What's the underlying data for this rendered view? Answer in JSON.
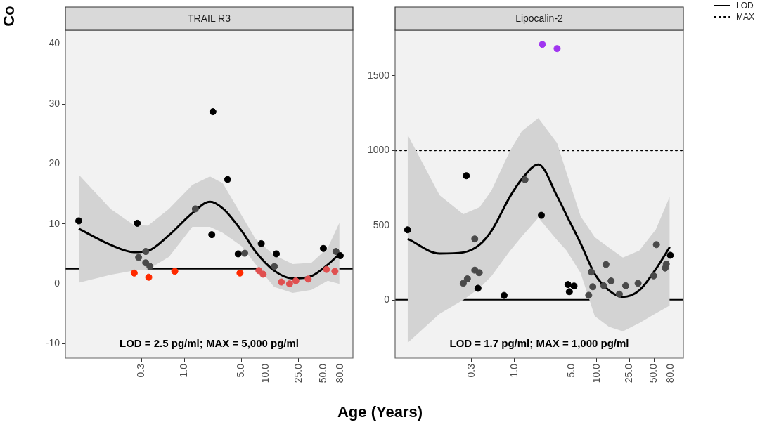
{
  "chart_data": [
    {
      "type": "scatter",
      "title": "TRAIL R3",
      "xlabel": "Age (Years)",
      "ylabel": "Co",
      "log": "x",
      "grid": false,
      "legend": false,
      "marker": "circle",
      "xlim": [
        0.035,
        115
      ],
      "xticks": [
        {
          "value": 0.3,
          "label": "0.3"
        },
        {
          "value": 1,
          "label": "1.0"
        },
        {
          "value": 5,
          "label": "5.0"
        },
        {
          "value": 10,
          "label": "10.0"
        },
        {
          "value": 25,
          "label": "25.0"
        },
        {
          "value": 50,
          "label": "50.0"
        },
        {
          "value": 80,
          "label": "80.0"
        }
      ],
      "ylim": [
        -12.4,
        42.3
      ],
      "yticks": [
        -10,
        0,
        10,
        20,
        30,
        40
      ],
      "series": [
        {
          "color": "#000000",
          "x": [
            0.051,
            0.265,
            2.23,
            3.37,
            2.16,
            4.54,
            8.7,
            13.3,
            50,
            80.4
          ],
          "values": [
            10.5,
            10.1,
            28.7,
            17.4,
            8.2,
            5.0,
            6.7,
            5.0,
            5.9,
            4.7
          ]
        },
        {
          "color": "#4a4a4a",
          "x": [
            0.275,
            0.336,
            0.336,
            0.378,
            1.36,
            5.46,
            12.6,
            71.3
          ],
          "values": [
            4.4,
            5.4,
            3.5,
            2.9,
            12.5,
            5.1,
            2.9,
            5.4
          ]
        },
        {
          "color": "#ff2a00",
          "x": [
            0.243,
            0.366,
            0.762,
            4.78
          ],
          "values": [
            1.8,
            1.1,
            2.1,
            1.8
          ]
        },
        {
          "color": "#e05050",
          "x": [
            8.15,
            9.17,
            15.3,
            19.3,
            23.0,
            32.6,
            54.6,
            69.2
          ],
          "values": [
            2.2,
            1.6,
            0.3,
            0.0,
            0.5,
            0.8,
            2.4,
            2.1
          ]
        },
        {
          "type": "line",
          "color": "#000000",
          "line_style": "solid",
          "marker": "none",
          "x": [
            0.051,
            0.125,
            0.241,
            0.358,
            0.647,
            1.25,
            2.05,
            2.94,
            4.97,
            7.38,
            12.5,
            21.1,
            35.7,
            56.6,
            78.7
          ],
          "values": [
            9.2,
            6.5,
            5.3,
            5.5,
            8.1,
            11.8,
            13.7,
            12.6,
            8.9,
            5.4,
            2.2,
            0.9,
            1.3,
            3.2,
            5.0
          ],
          "upper": [
            18.2,
            12.5,
            9.8,
            9.7,
            12.5,
            16.5,
            17.9,
            16.8,
            11.5,
            7.5,
            4.8,
            3.3,
            3.5,
            6.0,
            10.2
          ],
          "lower": [
            0.2,
            1.5,
            2.2,
            2.4,
            4.5,
            9.5,
            9.5,
            8.5,
            6.3,
            3.3,
            -0.5,
            -1.5,
            -1.0,
            0.5,
            0.0
          ]
        }
      ],
      "ref_lines": [
        {
          "axis": "y",
          "value": 2.5,
          "line_style": "solid",
          "color": "#000000"
        }
      ],
      "annotations": [
        "LOD = 2.5 pg/ml; MAX = 5,000 pg/ml"
      ]
    },
    {
      "type": "scatter",
      "title": "Lipocalin-2",
      "log": "x",
      "grid": false,
      "legend": "top right",
      "marker": "circle",
      "xlim": [
        0.035,
        114
      ],
      "xticks": [
        {
          "value": 0.3,
          "label": "0.3"
        },
        {
          "value": 1,
          "label": "1.0"
        },
        {
          "value": 5,
          "label": "5.0"
        },
        {
          "value": 10,
          "label": "10.0"
        },
        {
          "value": 25,
          "label": "25.0"
        },
        {
          "value": 50,
          "label": "50.0"
        },
        {
          "value": 80,
          "label": "80.0"
        }
      ],
      "ylim": [
        -390,
        1805
      ],
      "yticks": [
        0,
        500,
        1000,
        1500
      ],
      "series": [
        {
          "color": "#000000",
          "x": [
            0.258,
            2.12,
            0.0497,
            0.358,
            0.745,
            4.47,
            4.65,
            5.3,
            79.1
          ],
          "values": [
            831,
            566,
            469,
            78,
            30,
            103,
            55,
            93,
            299
          ]
        },
        {
          "color": "#4a4a4a",
          "x": [
            1.34,
            0.327,
            0.237,
            0.266,
            0.327,
            0.371,
            8.0,
            8.6,
            8.98,
            12.2,
            13.0,
            15.0,
            18.9,
            22.6,
            32.0,
            49.5,
            53.5,
            68.4,
            70.6
          ],
          "values": [
            804,
            408,
            111,
            141,
            199,
            182,
            31,
            187,
            88,
            95,
            237,
            127,
            39,
            95,
            111,
            161,
            370,
            213,
            240
          ]
        },
        {
          "color": "#a035f0",
          "x": [
            2.18,
            3.3
          ],
          "values": [
            1710,
            1682
          ]
        },
        {
          "type": "line",
          "color": "#000000",
          "line_style": "solid",
          "marker": "none",
          "x": [
            0.0497,
            0.122,
            0.237,
            0.375,
            0.52,
            0.885,
            1.23,
            1.95,
            3.3,
            4.3,
            6.38,
            9.48,
            14.1,
            20.9,
            33.1,
            52.5,
            77.8
          ],
          "values": [
            409,
            310,
            318,
            370,
            460,
            694,
            810,
            906,
            694,
            566,
            378,
            174,
            64,
            20,
            64,
            205,
            354
          ],
          "upper": [
            1106,
            700,
            574,
            620,
            730,
            1000,
            1130,
            1216,
            1050,
            850,
            560,
            420,
            350,
            283,
            330,
            470,
            691
          ],
          "lower": [
            -288,
            -93,
            0,
            80,
            158,
            330,
            425,
            550,
            400,
            330,
            180,
            -108,
            -180,
            -210,
            -155,
            -90,
            -38
          ]
        }
      ],
      "ref_lines": [
        {
          "axis": "y",
          "value": 1.7,
          "label": "LOD",
          "line_style": "solid",
          "color": "#000000"
        },
        {
          "axis": "y",
          "value": 1000,
          "label": "MAX",
          "line_style": "dotted",
          "color": "#000000"
        }
      ],
      "annotations": [
        "LOD = 1.7 pg/ml; MAX = 1,000 pg/ml"
      ]
    }
  ]
}
